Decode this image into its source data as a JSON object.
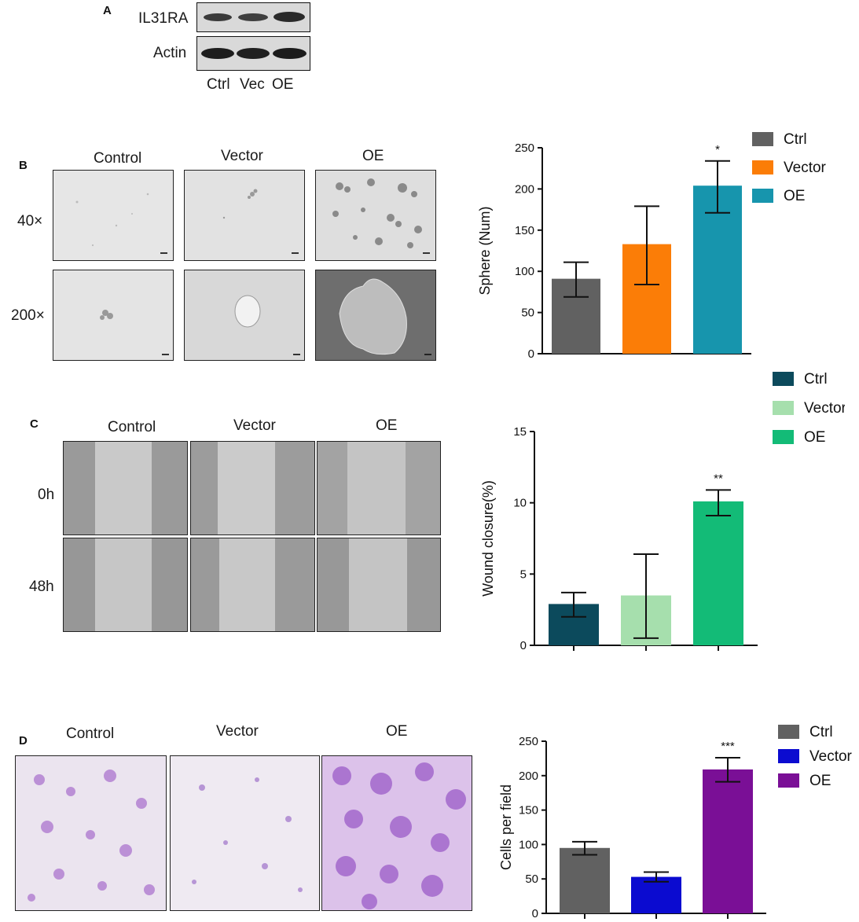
{
  "panelA": {
    "letter": "A",
    "rows": [
      "IL31RA",
      "Actin"
    ],
    "lanes": [
      "Ctrl",
      "Vec",
      "OE"
    ]
  },
  "panelB": {
    "letter": "B",
    "columns": [
      "Control",
      "Vector",
      "OE"
    ],
    "rows": [
      "40×",
      "200×"
    ]
  },
  "panelC": {
    "letter": "C",
    "columns": [
      "Control",
      "Vector",
      "OE"
    ],
    "rows": [
      "0h",
      "48h"
    ]
  },
  "panelD": {
    "letter": "D",
    "columns": [
      "Control",
      "Vector",
      "OE"
    ]
  },
  "chart_data": [
    {
      "id": "sphere",
      "type": "bar",
      "categories": [
        "Ctrl",
        "Vector",
        "OE"
      ],
      "values": [
        91,
        133,
        204
      ],
      "errors": [
        [
          69,
          111
        ],
        [
          84,
          179
        ],
        [
          171,
          234
        ]
      ],
      "colors": [
        "#616161",
        "#fb7d07",
        "#1795ad"
      ],
      "legend": [
        "Ctrl",
        "Vector",
        "OE"
      ],
      "ylabel": "Sphere (Num)",
      "ylim": [
        0,
        250
      ],
      "yticks": [
        "0",
        "50",
        "100",
        "150",
        "200",
        "250"
      ],
      "annotations": [
        "",
        "",
        "*"
      ]
    },
    {
      "id": "wound",
      "type": "bar",
      "categories": [
        "Ctrl",
        "Vector",
        "OE"
      ],
      "values": [
        2.9,
        3.5,
        10.1
      ],
      "errors": [
        [
          2.0,
          3.7
        ],
        [
          0.5,
          6.4
        ],
        [
          9.1,
          10.9
        ]
      ],
      "colors": [
        "#0c4a5c",
        "#a6dfad",
        "#13bb77"
      ],
      "legend": [
        "Ctrl",
        "Vector",
        "OE"
      ],
      "ylabel": "Wound closure(%)",
      "ylim": [
        0,
        15
      ],
      "yticks": [
        "0",
        "5",
        "10",
        "15"
      ],
      "annotations": [
        "",
        "",
        "**"
      ]
    },
    {
      "id": "cells",
      "type": "bar",
      "categories": [
        "Ctrl",
        "Vector",
        "OE"
      ],
      "values": [
        95,
        53,
        209
      ],
      "errors": [
        [
          85,
          104
        ],
        [
          46,
          60
        ],
        [
          191,
          226
        ]
      ],
      "colors": [
        "#616161",
        "#0b0bd0",
        "#7a0f96"
      ],
      "legend": [
        "Ctrl",
        "Vector",
        "OE"
      ],
      "ylabel": "Cells per field",
      "ylim": [
        0,
        250
      ],
      "yticks": [
        "0",
        "50",
        "100",
        "150",
        "200",
        "250"
      ],
      "annotations": [
        "",
        "",
        "***"
      ]
    }
  ]
}
